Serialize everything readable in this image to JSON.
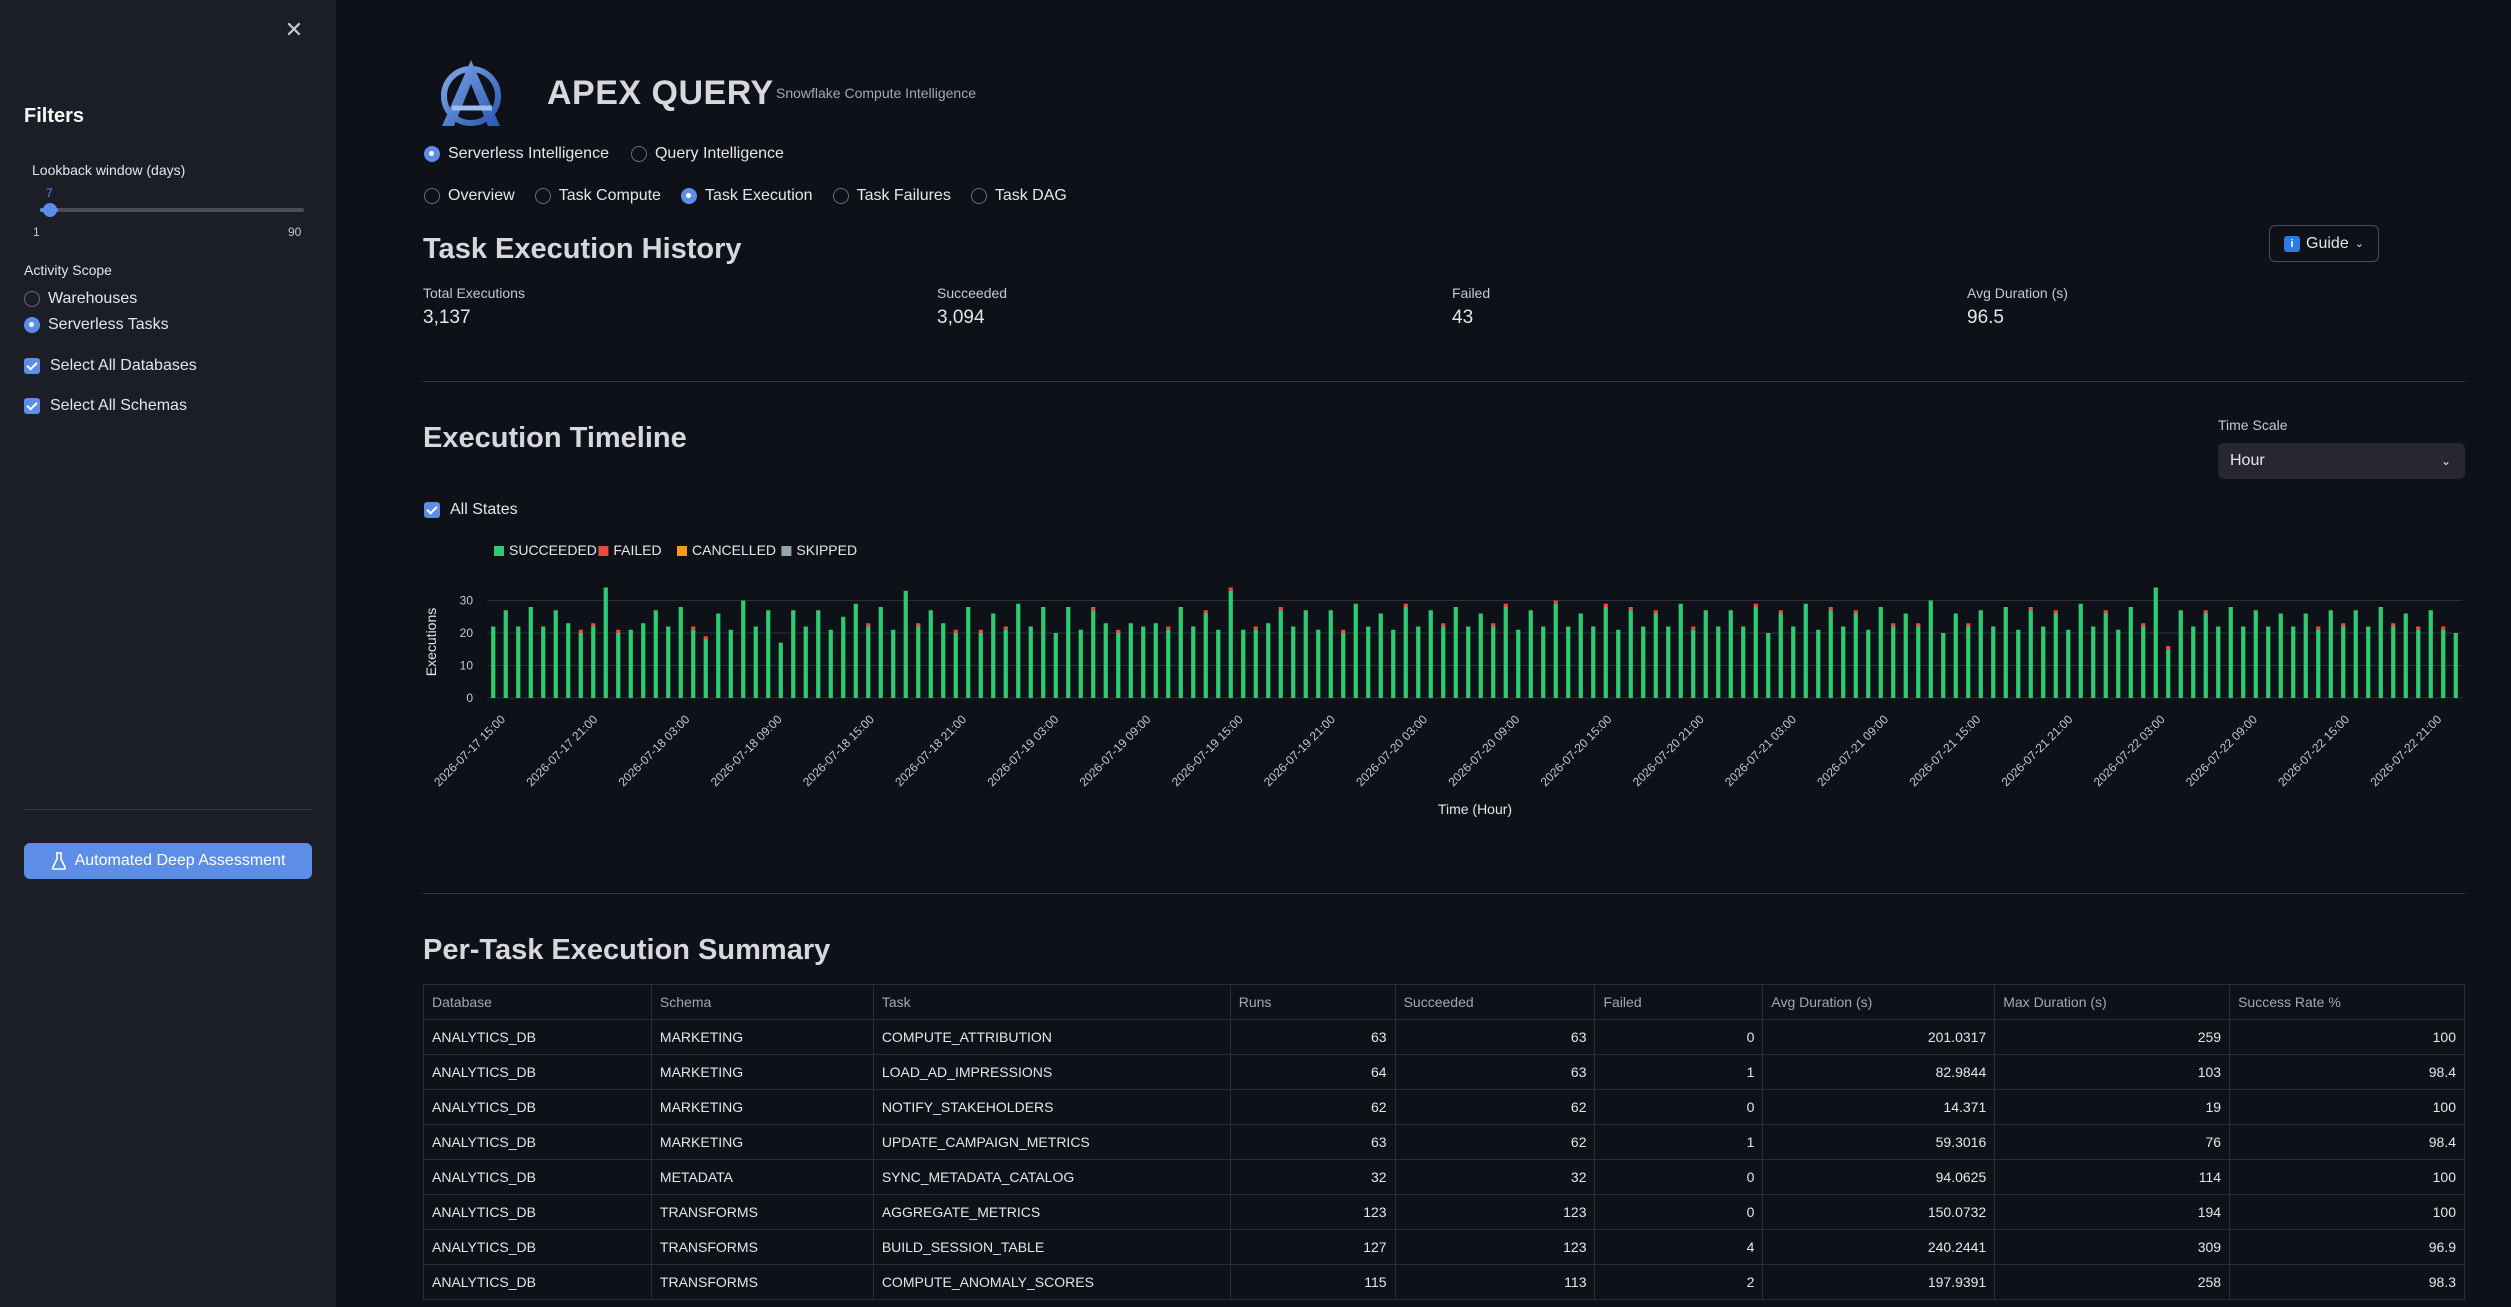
{
  "sidebar": {
    "title": "Filters",
    "lookback": {
      "label": "Lookback window (days)",
      "value": "7",
      "min": "1",
      "max": "90",
      "fraction": 0.0674
    },
    "scope_label": "Activity Scope",
    "scope_options": [
      {
        "label": "Warehouses",
        "selected": false
      },
      {
        "label": "Serverless Tasks",
        "selected": true
      }
    ],
    "checks": [
      {
        "label": "Select All Databases",
        "checked": true
      },
      {
        "label": "Select All Schemas",
        "checked": true
      }
    ],
    "deep_button": "Automated Deep Assessment"
  },
  "header": {
    "title": "APEX QUERY",
    "subtitle": "Snowflake Compute Intelligence"
  },
  "nav_primary": [
    {
      "label": "Serverless Intelligence",
      "selected": true
    },
    {
      "label": "Query Intelligence",
      "selected": false
    }
  ],
  "nav_secondary": [
    {
      "label": "Overview",
      "selected": false
    },
    {
      "label": "Task Compute",
      "selected": false
    },
    {
      "label": "Task Execution",
      "selected": true
    },
    {
      "label": "Task Failures",
      "selected": false
    },
    {
      "label": "Task DAG",
      "selected": false
    }
  ],
  "section_history": "Task Execution History",
  "guide_button": "Guide",
  "metrics": [
    {
      "label": "Total Executions",
      "value": "3,137"
    },
    {
      "label": "Succeeded",
      "value": "3,094"
    },
    {
      "label": "Failed",
      "value": "43"
    },
    {
      "label": "Avg Duration (s)",
      "value": "96.5"
    }
  ],
  "section_timeline": "Execution Timeline",
  "time_scale": {
    "label": "Time Scale",
    "value": "Hour"
  },
  "all_states": "All States",
  "colors": {
    "succeeded": "#2ecc71",
    "failed": "#e74c3c",
    "cancelled": "#f39c12",
    "skipped": "#95a5a6",
    "accent": "#5c8ee8"
  },
  "chart_data": {
    "type": "bar",
    "stacked": true,
    "legend": [
      "SUCCEEDED",
      "FAILED",
      "CANCELLED",
      "SKIPPED"
    ],
    "legend_position": "top-left",
    "ylabel": "Executions",
    "xlabel": "Time (Hour)",
    "yticks": [
      0,
      10,
      20,
      30
    ],
    "ylim": [
      0,
      36
    ],
    "x_tick_labels": [
      "2026-07-17 15:00",
      "2026-07-17 21:00",
      "2026-07-18 03:00",
      "2026-07-18 09:00",
      "2026-07-18 15:00",
      "2026-07-18 21:00",
      "2026-07-19 03:00",
      "2026-07-19 09:00",
      "2026-07-19 15:00",
      "2026-07-19 21:00",
      "2026-07-20 03:00",
      "2026-07-20 09:00",
      "2026-07-20 15:00",
      "2026-07-20 21:00",
      "2026-07-21 03:00",
      "2026-07-21 09:00",
      "2026-07-21 15:00",
      "2026-07-21 21:00",
      "2026-07-22 03:00",
      "2026-07-22 09:00",
      "2026-07-22 15:00",
      "2026-07-22 21:00"
    ],
    "succeeded": [
      22,
      27,
      22,
      28,
      22,
      27,
      23,
      20,
      22,
      34,
      20,
      21,
      23,
      27,
      22,
      28,
      21,
      18,
      26,
      21,
      30,
      22,
      27,
      17,
      27,
      22,
      27,
      21,
      25,
      29,
      22,
      28,
      21,
      33,
      22,
      27,
      23,
      20,
      28,
      20,
      26,
      21,
      29,
      22,
      28,
      20,
      28,
      21,
      27,
      23,
      20,
      23,
      22,
      23,
      21,
      28,
      22,
      26,
      21,
      33,
      21,
      21,
      23,
      27,
      22,
      27,
      21,
      27,
      20,
      29,
      22,
      26,
      21,
      28,
      22,
      27,
      22,
      28,
      22,
      26,
      22,
      28,
      21,
      27,
      22,
      29,
      22,
      26,
      22,
      28,
      21,
      27,
      22,
      26,
      22,
      29,
      21,
      27,
      22,
      27,
      22,
      28,
      20,
      26,
      22,
      29,
      21,
      27,
      22,
      26,
      21,
      28,
      22,
      26,
      22,
      30,
      20,
      26,
      22,
      27,
      22,
      28,
      21,
      27,
      22,
      26,
      21,
      29,
      22,
      26,
      21,
      28,
      22,
      34,
      15,
      27,
      22,
      26,
      22,
      28,
      22,
      27,
      22,
      26,
      22,
      26,
      21,
      27,
      22,
      27,
      22,
      28,
      22,
      26,
      21,
      27,
      21,
      20
    ],
    "failed": [
      0,
      0,
      0,
      0,
      0,
      0,
      0,
      1,
      1,
      0,
      1,
      0,
      0,
      0,
      0,
      0,
      1,
      1,
      0,
      0,
      0,
      0,
      0,
      0,
      0,
      0,
      0,
      0,
      0,
      0,
      1,
      0,
      0,
      0,
      1,
      0,
      0,
      1,
      0,
      1,
      0,
      1,
      0,
      0,
      0,
      0,
      0,
      0,
      1,
      0,
      1,
      0,
      0,
      0,
      1,
      0,
      0,
      1,
      0,
      1,
      0,
      1,
      0,
      1,
      0,
      0,
      0,
      0,
      1,
      0,
      0,
      0,
      0,
      1,
      0,
      0,
      1,
      0,
      0,
      0,
      1,
      1,
      0,
      0,
      0,
      1,
      0,
      0,
      0,
      1,
      0,
      1,
      0,
      1,
      0,
      0,
      1,
      0,
      0,
      0,
      0,
      1,
      0,
      1,
      0,
      0,
      0,
      1,
      0,
      1,
      0,
      0,
      1,
      0,
      1,
      0,
      0,
      0,
      1,
      0,
      0,
      0,
      0,
      1,
      0,
      1,
      0,
      0,
      0,
      1,
      0,
      0,
      1,
      0,
      1,
      0,
      0,
      1,
      0,
      0,
      0,
      0,
      0,
      0,
      0,
      0,
      1,
      0,
      1,
      0,
      0,
      0,
      1,
      0,
      1,
      0,
      1,
      0
    ]
  },
  "section_summary": "Per-Task Execution Summary",
  "table": {
    "columns": [
      "Database",
      "Schema",
      "Task",
      "Runs",
      "Succeeded",
      "Failed",
      "Avg Duration (s)",
      "Max Duration (s)",
      "Success Rate %"
    ],
    "rows": [
      [
        "ANALYTICS_DB",
        "MARKETING",
        "COMPUTE_ATTRIBUTION",
        "63",
        "63",
        "0",
        "201.0317",
        "259",
        "100"
      ],
      [
        "ANALYTICS_DB",
        "MARKETING",
        "LOAD_AD_IMPRESSIONS",
        "64",
        "63",
        "1",
        "82.9844",
        "103",
        "98.4"
      ],
      [
        "ANALYTICS_DB",
        "MARKETING",
        "NOTIFY_STAKEHOLDERS",
        "62",
        "62",
        "0",
        "14.371",
        "19",
        "100"
      ],
      [
        "ANALYTICS_DB",
        "MARKETING",
        "UPDATE_CAMPAIGN_METRICS",
        "63",
        "62",
        "1",
        "59.3016",
        "76",
        "98.4"
      ],
      [
        "ANALYTICS_DB",
        "METADATA",
        "SYNC_METADATA_CATALOG",
        "32",
        "32",
        "0",
        "94.0625",
        "114",
        "100"
      ],
      [
        "ANALYTICS_DB",
        "TRANSFORMS",
        "AGGREGATE_METRICS",
        "123",
        "123",
        "0",
        "150.0732",
        "194",
        "100"
      ],
      [
        "ANALYTICS_DB",
        "TRANSFORMS",
        "BUILD_SESSION_TABLE",
        "127",
        "123",
        "4",
        "240.2441",
        "309",
        "96.9"
      ],
      [
        "ANALYTICS_DB",
        "TRANSFORMS",
        "COMPUTE_ANOMALY_SCORES",
        "115",
        "113",
        "2",
        "197.9391",
        "258",
        "98.3"
      ]
    ]
  }
}
